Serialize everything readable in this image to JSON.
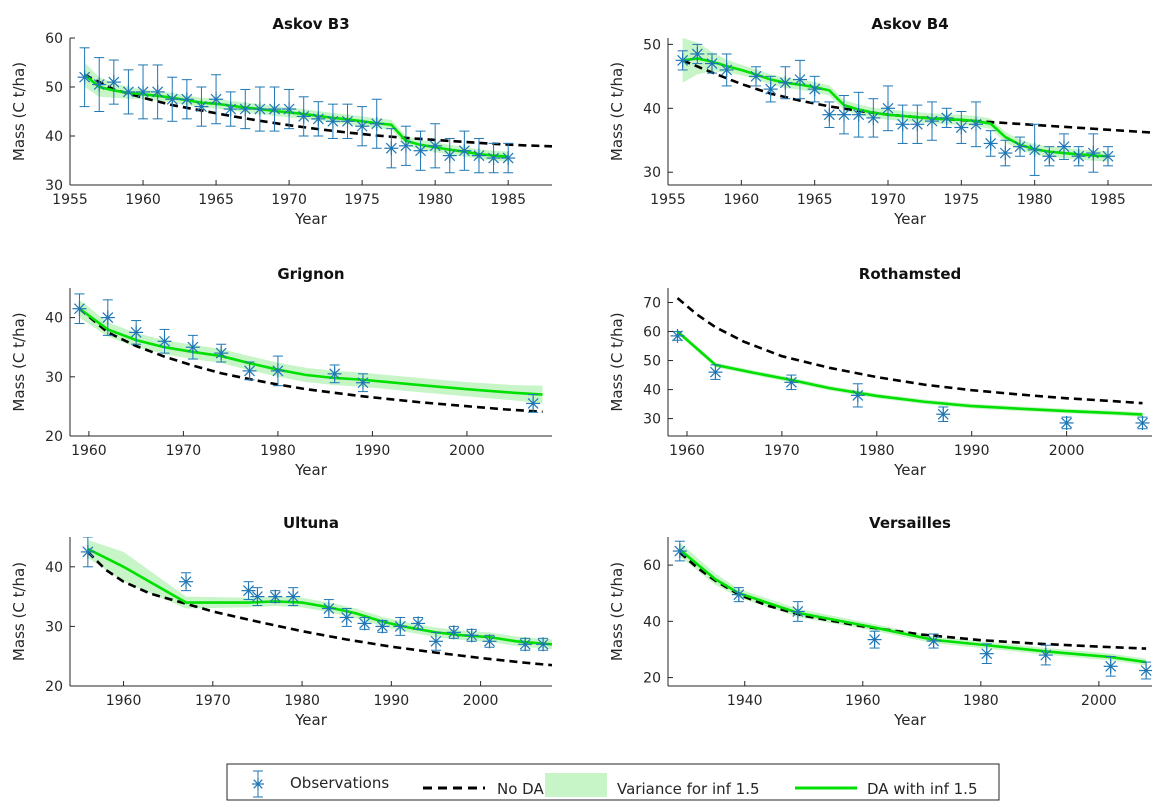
{
  "legend": {
    "observations": "Observations",
    "no_da": "No DA",
    "variance": "Variance for inf 1.5",
    "da": "DA with inf 1.5"
  },
  "colors": {
    "observations": "#1f77b4",
    "no_da": "#000000",
    "variance": "#c8f5c8",
    "da": "#00e000"
  },
  "chart_data": [
    {
      "type": "line",
      "title": "Askov B3",
      "xlabel": "Year",
      "ylabel": "Mass (C t/ha)",
      "xlim": [
        1955,
        1988
      ],
      "ylim": [
        30,
        60
      ],
      "xticks": [
        1955,
        1960,
        1965,
        1970,
        1975,
        1980,
        1985
      ],
      "yticks": [
        30,
        40,
        50,
        60
      ],
      "observations": {
        "x": [
          1956,
          1957,
          1958,
          1959,
          1960,
          1961,
          1962,
          1963,
          1964,
          1965,
          1966,
          1967,
          1968,
          1969,
          1970,
          1971,
          1972,
          1973,
          1974,
          1975,
          1976,
          1977,
          1978,
          1979,
          1980,
          1981,
          1982,
          1983,
          1984,
          1985
        ],
        "y": [
          52,
          50.5,
          51,
          49,
          49,
          49,
          47.5,
          47.5,
          46,
          47.5,
          45.5,
          45.5,
          45.5,
          45.5,
          45.5,
          44,
          43.5,
          43,
          43,
          42,
          42.5,
          37.5,
          38,
          37,
          38,
          36,
          37,
          36,
          35.5,
          35.5
        ],
        "err": [
          6,
          5.5,
          4.5,
          4.5,
          5.5,
          5.5,
          4.5,
          4,
          4,
          5,
          3.5,
          4,
          4.5,
          4.5,
          4,
          4,
          3.5,
          3.5,
          3.5,
          4,
          5,
          4,
          4,
          4,
          4.5,
          3.5,
          4,
          3.5,
          3,
          3
        ]
      },
      "no_da": {
        "x": [
          1956,
          1958,
          1960,
          1962,
          1964,
          1966,
          1968,
          1970,
          1972,
          1974,
          1976,
          1978,
          1980,
          1982,
          1984,
          1986,
          1988
        ],
        "y": [
          52.5,
          49.5,
          47.8,
          46.3,
          45.2,
          44.1,
          43.1,
          42.2,
          41.4,
          40.7,
          40.1,
          39.6,
          39.2,
          38.8,
          38.4,
          38.1,
          37.9
        ]
      },
      "da": {
        "x": [
          1956,
          1957,
          1958,
          1959,
          1960,
          1961,
          1962,
          1963,
          1964,
          1965,
          1966,
          1967,
          1968,
          1969,
          1970,
          1971,
          1972,
          1973,
          1974,
          1975,
          1976,
          1977,
          1978,
          1979,
          1980,
          1981,
          1982,
          1983,
          1984,
          1985
        ],
        "y": [
          52.5,
          50,
          49.3,
          48.8,
          48.5,
          48.2,
          47.8,
          47.3,
          46.8,
          46.6,
          46.2,
          45.8,
          45.5,
          45.1,
          44.8,
          44.5,
          44.1,
          43.7,
          43.4,
          43,
          42.6,
          42.3,
          39,
          38.2,
          37.7,
          37.2,
          36.8,
          36.3,
          36,
          35.8
        ],
        "band": [
          2.5,
          2,
          1.5,
          1.2,
          1,
          1,
          1,
          1,
          1,
          1,
          1,
          1,
          1,
          1,
          1,
          1,
          1,
          1,
          1,
          1,
          1,
          1,
          1,
          1,
          1,
          1,
          1,
          1,
          1,
          1
        ]
      }
    },
    {
      "type": "line",
      "title": "Askov B4",
      "xlabel": "Year",
      "ylabel": "Mass (C t/ha)",
      "xlim": [
        1955,
        1988
      ],
      "ylim": [
        28,
        51
      ],
      "xticks": [
        1955,
        1960,
        1965,
        1970,
        1975,
        1980,
        1985
      ],
      "yticks": [
        30,
        40,
        50
      ],
      "observations": {
        "x": [
          1956,
          1957,
          1958,
          1959,
          1961,
          1962,
          1963,
          1964,
          1965,
          1966,
          1967,
          1968,
          1969,
          1970,
          1971,
          1972,
          1973,
          1974,
          1975,
          1976,
          1977,
          1978,
          1979,
          1980,
          1981,
          1982,
          1983,
          1984,
          1985
        ],
        "y": [
          47.5,
          48.5,
          47,
          46,
          45,
          43,
          44,
          44.5,
          43,
          39,
          39,
          39,
          38.5,
          40,
          37.5,
          37.5,
          38,
          38.5,
          37,
          37.5,
          34.5,
          33,
          34,
          33.5,
          32.5,
          34,
          32.5,
          33,
          32.5
        ],
        "err": [
          1.5,
          1.5,
          1.5,
          2.5,
          1.5,
          2,
          2.5,
          3,
          2,
          2,
          3,
          3.5,
          3,
          3.5,
          3,
          3,
          3,
          1.5,
          2.5,
          3.5,
          2,
          2,
          1.5,
          4,
          1.5,
          2,
          1.5,
          3,
          1.5
        ]
      },
      "no_da": {
        "x": [
          1956,
          1958,
          1960,
          1962,
          1964,
          1966,
          1968,
          1970,
          1972,
          1974,
          1976,
          1978,
          1980,
          1982,
          1984,
          1986,
          1988
        ],
        "y": [
          47.5,
          45.6,
          43.8,
          42.3,
          41.2,
          40.3,
          39.6,
          39,
          38.6,
          38.3,
          38,
          37.7,
          37.4,
          37.1,
          36.8,
          36.5,
          36.2
        ]
      },
      "da": {
        "x": [
          1956,
          1957,
          1958,
          1959,
          1960,
          1961,
          1962,
          1963,
          1964,
          1965,
          1966,
          1967,
          1968,
          1969,
          1970,
          1971,
          1972,
          1973,
          1974,
          1975,
          1976,
          1977,
          1978,
          1979,
          1980,
          1981,
          1982,
          1983,
          1984,
          1985
        ],
        "y": [
          47.5,
          47.8,
          47.3,
          46.6,
          46,
          45.3,
          44.5,
          44,
          43.7,
          43.3,
          42.8,
          40.5,
          39.8,
          39.3,
          39,
          38.8,
          38.6,
          38.4,
          38.3,
          38.2,
          38,
          37.6,
          35.5,
          34.3,
          33.6,
          33.2,
          33,
          32.8,
          32.6,
          32.5
        ],
        "band": [
          3.5,
          2.5,
          1.5,
          1,
          0.8,
          0.8,
          0.8,
          0.8,
          0.8,
          0.8,
          0.8,
          0.8,
          0.8,
          0.8,
          0.8,
          0.8,
          0.8,
          0.8,
          0.8,
          0.8,
          0.8,
          0.8,
          0.8,
          0.8,
          0.8,
          0.8,
          0.8,
          0.8,
          0.8,
          0.8
        ]
      }
    },
    {
      "type": "line",
      "title": "Grignon",
      "xlabel": "Year",
      "ylabel": "Mass (C t/ha)",
      "xlim": [
        1958,
        2009
      ],
      "ylim": [
        20,
        45
      ],
      "xticks": [
        1960,
        1970,
        1980,
        1990,
        2000
      ],
      "yticks": [
        20,
        30,
        40
      ],
      "observations": {
        "x": [
          1959,
          1962,
          1965,
          1968,
          1971,
          1974,
          1977,
          1980,
          1986,
          1989,
          2007
        ],
        "y": [
          41.5,
          40,
          37.5,
          36,
          35,
          34,
          31,
          31,
          30.5,
          29,
          25.5
        ],
        "err": [
          2.5,
          3,
          2,
          2,
          2,
          1.5,
          1.5,
          2.5,
          1.5,
          1.5,
          1.5
        ]
      },
      "no_da": {
        "x": [
          1959,
          1962,
          1965,
          1968,
          1971,
          1974,
          1977,
          1980,
          1983,
          1986,
          1989,
          1992,
          1995,
          1998,
          2001,
          2004,
          2008
        ],
        "y": [
          41.5,
          37.5,
          35.2,
          33.4,
          31.9,
          30.6,
          29.6,
          28.7,
          27.9,
          27.3,
          26.7,
          26.2,
          25.7,
          25.3,
          24.9,
          24.5,
          24.1
        ]
      },
      "da": {
        "x": [
          1959,
          1962,
          1965,
          1968,
          1971,
          1974,
          1977,
          1980,
          1983,
          1986,
          1989,
          1995,
          2000,
          2005,
          2008
        ],
        "y": [
          41.5,
          38,
          36.2,
          35,
          34.2,
          33.5,
          32.3,
          31.2,
          30.3,
          29.8,
          29.5,
          28.6,
          27.9,
          27.3,
          27
        ],
        "band": [
          1.5,
          1.2,
          1.2,
          1.2,
          1.2,
          1.2,
          1.2,
          1.2,
          1.2,
          1.2,
          1.2,
          1.2,
          1.2,
          1.3,
          1.5
        ]
      }
    },
    {
      "type": "line",
      "title": "Rothamsted",
      "xlabel": "Year",
      "ylabel": "Mass (C t/ha)",
      "xlim": [
        1958,
        2009
      ],
      "ylim": [
        24,
        75
      ],
      "xticks": [
        1960,
        1970,
        1980,
        1990,
        2000
      ],
      "yticks": [
        30,
        40,
        50,
        60,
        70
      ],
      "observations": {
        "x": [
          1959,
          1963,
          1971,
          1978,
          1987,
          2000,
          2008
        ],
        "y": [
          58.5,
          46,
          42.5,
          38,
          31.5,
          28.5,
          28.5
        ],
        "err": [
          1.5,
          2.5,
          2.5,
          4,
          2.5,
          2,
          2
        ]
      },
      "no_da": {
        "x": [
          1959,
          1961,
          1963,
          1966,
          1970,
          1975,
          1980,
          1985,
          1990,
          1995,
          2000,
          2005,
          2008
        ],
        "y": [
          71.5,
          66,
          61.5,
          56.5,
          51.5,
          47.5,
          44.3,
          41.7,
          39.8,
          38.3,
          37,
          36,
          35.3
        ]
      },
      "da": {
        "x": [
          1959,
          1963,
          1967,
          1971,
          1975,
          1980,
          1985,
          1990,
          1995,
          2000,
          2005,
          2008
        ],
        "y": [
          60,
          48.5,
          45.8,
          43.3,
          40.5,
          37.8,
          35.8,
          34.3,
          33.4,
          32.6,
          31.9,
          31.4
        ],
        "band": [
          0.8,
          0.8,
          0.8,
          0.8,
          0.8,
          0.8,
          0.8,
          0.8,
          0.8,
          0.8,
          0.8,
          0.8
        ]
      }
    },
    {
      "type": "line",
      "title": "Ultuna",
      "xlabel": "Year",
      "ylabel": "Mass (C t/ha)",
      "xlim": [
        1954,
        2008
      ],
      "ylim": [
        20,
        45
      ],
      "xticks": [
        1960,
        1970,
        1980,
        1990,
        2000
      ],
      "yticks": [
        20,
        30,
        40
      ],
      "observations": {
        "x": [
          1956,
          1967,
          1974,
          1975,
          1977,
          1979,
          1983,
          1985,
          1987,
          1989,
          1991,
          1993,
          1995,
          1997,
          1999,
          2001,
          2005,
          2007
        ],
        "y": [
          42.5,
          37.5,
          36,
          35,
          35,
          35,
          33,
          31.5,
          30.5,
          30,
          30,
          30.5,
          27.5,
          29,
          28.5,
          27.5,
          27,
          27
        ],
        "err": [
          2.5,
          1.5,
          1.5,
          1.5,
          1,
          1.5,
          1.5,
          1.5,
          1,
          1,
          1.5,
          1,
          1.5,
          1,
          1,
          1,
          1,
          1
        ]
      },
      "no_da": {
        "x": [
          1956,
          1958,
          1960,
          1963,
          1967,
          1970,
          1975,
          1980,
          1985,
          1990,
          1995,
          2000,
          2005,
          2008
        ],
        "y": [
          42.5,
          39.5,
          37.5,
          35.5,
          33.8,
          32.5,
          30.8,
          29.2,
          27.8,
          26.6,
          25.6,
          24.7,
          23.9,
          23.5
        ]
      },
      "da": {
        "x": [
          1956,
          1960,
          1967,
          1974,
          1977,
          1980,
          1983,
          1986,
          1989,
          1992,
          1995,
          1998,
          2001,
          2004,
          2008
        ],
        "y": [
          43,
          40,
          34,
          34,
          34.2,
          34,
          33.2,
          32.2,
          30.8,
          29.8,
          29,
          28.5,
          28.2,
          27.5,
          27
        ],
        "band": [
          1.5,
          2.5,
          1,
          0.8,
          0.8,
          0.8,
          0.8,
          0.8,
          0.8,
          0.8,
          0.8,
          0.8,
          0.8,
          0.8,
          0.8
        ]
      }
    },
    {
      "type": "line",
      "title": "Versailles",
      "xlabel": "Year",
      "ylabel": "Mass (C t/ha)",
      "xlim": [
        1927,
        2009
      ],
      "ylim": [
        17,
        70
      ],
      "xticks": [
        1940,
        1960,
        1980,
        2000
      ],
      "yticks": [
        20,
        40,
        60
      ],
      "observations": {
        "x": [
          1929,
          1939,
          1949,
          1962,
          1972,
          1981,
          1991,
          2002,
          2008
        ],
        "y": [
          65,
          49.5,
          43.5,
          33.5,
          33,
          28.5,
          28,
          24,
          22.5
        ],
        "err": [
          3.5,
          2.5,
          3.5,
          3,
          2.5,
          3.5,
          3.5,
          3.5,
          3
        ]
      },
      "no_da": {
        "x": [
          1929,
          1932,
          1935,
          1939,
          1944,
          1950,
          1960,
          1970,
          1980,
          1990,
          2000,
          2008
        ],
        "y": [
          64.5,
          59,
          54.5,
          49.5,
          45.5,
          42,
          38.2,
          35.3,
          33.3,
          32,
          31,
          30.3
        ]
      },
      "da": {
        "x": [
          1929,
          1935,
          1939,
          1949,
          1962,
          1972,
          1981,
          1991,
          2002,
          2008
        ],
        "y": [
          65.5,
          55,
          50,
          43,
          37.8,
          33.4,
          31.5,
          29.3,
          27.3,
          25.5
        ],
        "band": [
          2.5,
          2,
          1.5,
          1.5,
          1.2,
          1.2,
          1.2,
          1.2,
          1.2,
          1.2
        ]
      }
    }
  ]
}
